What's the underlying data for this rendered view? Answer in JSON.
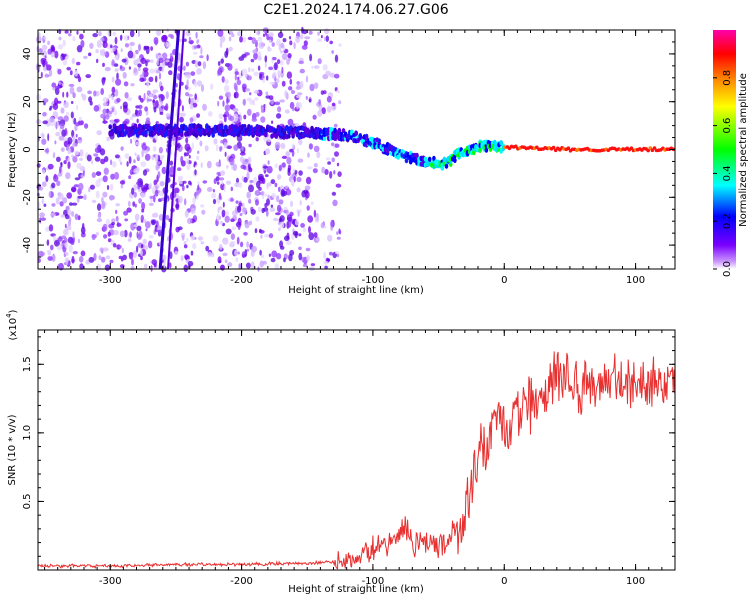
{
  "title": "C2E1.2024.174.06.27.G06",
  "chart_data": [
    {
      "type": "heatmap",
      "xlabel": "Height of straight line (km)",
      "ylabel": "Frequency (Hz)",
      "xlim": [
        -355,
        130
      ],
      "ylim": [
        -50,
        50
      ],
      "x_ticks": [
        -300,
        -200,
        -100,
        0,
        100
      ],
      "y_ticks": [
        -40,
        -20,
        0,
        20,
        40
      ],
      "colorbar": {
        "label": "Normalized spectral amplitude",
        "range": [
          0,
          1
        ],
        "ticks": [
          "0.0",
          "0.2",
          "0.4",
          "0.6",
          "0.8"
        ],
        "tick_values": [
          0,
          0.2,
          0.4,
          0.6,
          0.8
        ],
        "colors": [
          "#ffffff",
          "#cc99ff",
          "#7a00ff",
          "#0000ff",
          "#00ffff",
          "#00ff00",
          "#ffff00",
          "#ff8000",
          "#ff0000",
          "#ff00aa"
        ]
      },
      "signal_track": [
        {
          "x": -300,
          "y": 8
        },
        {
          "x": -250,
          "y": 8
        },
        {
          "x": -200,
          "y": 8
        },
        {
          "x": -150,
          "y": 7
        },
        {
          "x": -120,
          "y": 6
        },
        {
          "x": -100,
          "y": 3
        },
        {
          "x": -80,
          "y": -2
        },
        {
          "x": -60,
          "y": -5
        },
        {
          "x": -45,
          "y": -6
        },
        {
          "x": -35,
          "y": -2
        },
        {
          "x": -20,
          "y": 1
        },
        {
          "x": -10,
          "y": 2
        },
        {
          "x": 0,
          "y": 1
        },
        {
          "x": 50,
          "y": 0
        },
        {
          "x": 100,
          "y": 0
        },
        {
          "x": 130,
          "y": 0
        }
      ],
      "oblique_streak": {
        "x": [
          -262,
          -248
        ],
        "y": [
          -50,
          50
        ]
      }
    },
    {
      "type": "line",
      "xlabel": "Height of straight line (km)",
      "ylabel": "SNR (10 * v/v)",
      "y_multiplier": "(x10",
      "y_multiplier_exp": "4",
      "y_multiplier_close": ")",
      "xlim": [
        -355,
        130
      ],
      "ylim": [
        0,
        1.75
      ],
      "x_ticks": [
        -300,
        -200,
        -100,
        0,
        100
      ],
      "y_ticks": [
        0.5,
        1.0,
        1.5
      ],
      "y_tick_labels": [
        "0.5",
        "1.0",
        "1.5"
      ],
      "line_color": "#e83030",
      "series": [
        {
          "x": [
            -355,
            -300,
            -250,
            -200,
            -150,
            -125,
            -110,
            -100,
            -90,
            -80,
            -75,
            -70,
            -60,
            -50,
            -40,
            -30,
            -25,
            -20,
            -15,
            -10,
            -5,
            0,
            10,
            20,
            30,
            40,
            50,
            60,
            80,
            100,
            120,
            130
          ],
          "values": [
            0.03,
            0.03,
            0.04,
            0.04,
            0.05,
            0.06,
            0.1,
            0.15,
            0.18,
            0.25,
            0.35,
            0.2,
            0.22,
            0.2,
            0.22,
            0.35,
            0.7,
            0.85,
            0.9,
            0.95,
            1.0,
            1.05,
            1.15,
            1.2,
            1.3,
            1.35,
            1.36,
            1.37,
            1.36,
            1.37,
            1.36,
            1.37
          ]
        }
      ]
    }
  ]
}
